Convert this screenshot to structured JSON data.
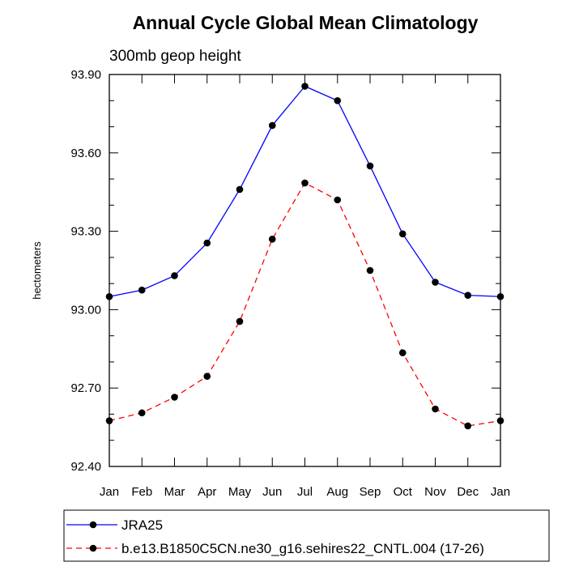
{
  "chart_data": {
    "type": "line",
    "title": "Annual Cycle Global Mean Climatology",
    "subtitle": "300mb geop height",
    "xlabel": "",
    "ylabel": "hectometers",
    "categories": [
      "Jan",
      "Feb",
      "Mar",
      "Apr",
      "May",
      "Jun",
      "Jul",
      "Aug",
      "Sep",
      "Oct",
      "Nov",
      "Dec",
      "Jan"
    ],
    "ylim": [
      92.4,
      93.9
    ],
    "yticks": [
      "92.40",
      "92.70",
      "93.00",
      "93.30",
      "93.60",
      "93.90"
    ],
    "grid": false,
    "legend_position": "bottom",
    "series": [
      {
        "name": "JRA25",
        "color": "#0000ff",
        "line_style": "solid",
        "values": [
          93.05,
          93.075,
          93.13,
          93.255,
          93.46,
          93.705,
          93.855,
          93.8,
          93.55,
          93.29,
          93.105,
          93.055,
          93.05
        ]
      },
      {
        "name": "b.e13.B1850C5CN.ne30_g16.sehires22_CNTL.004 (17-26)",
        "color": "#ff0000",
        "line_style": "dashed",
        "values": [
          92.575,
          92.605,
          92.665,
          92.745,
          92.955,
          93.27,
          93.485,
          93.42,
          93.15,
          92.835,
          92.62,
          92.555,
          92.575
        ]
      }
    ]
  }
}
